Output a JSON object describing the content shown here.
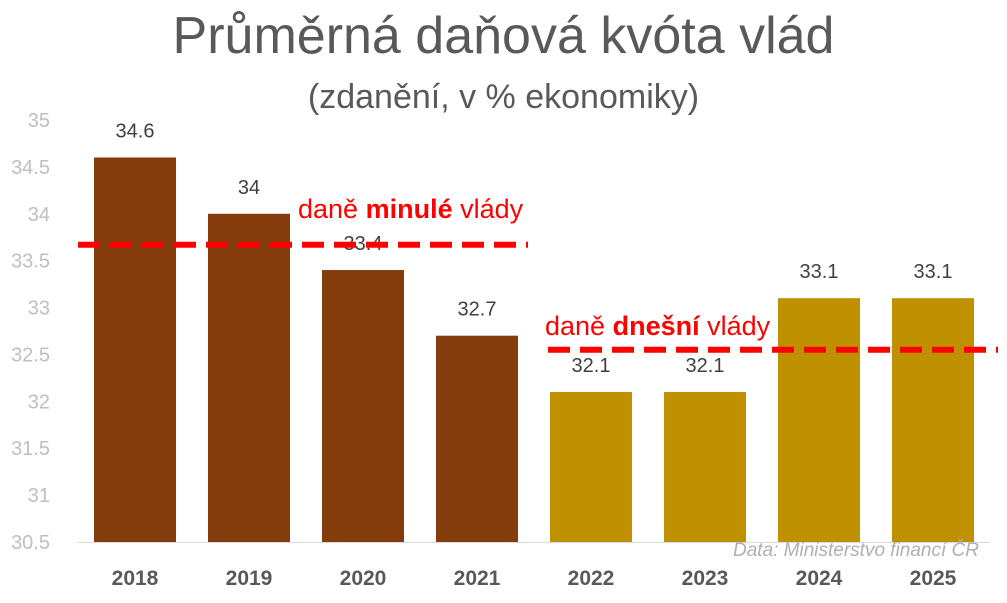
{
  "title": "Průměrná daňová kvóta vlád",
  "subtitle": "(zdanění, v % ekonomiky)",
  "source": "Data: Ministerstvo financí ČR",
  "annotations": {
    "previous": {
      "pre": "daně ",
      "bold": "minulé",
      "post": " vlády",
      "level": 33.67
    },
    "current": {
      "pre": "daně ",
      "bold": "dnešní",
      "post": " vlády",
      "level": 32.55
    }
  },
  "colors": {
    "previous_gov": "#843c0c",
    "current_gov": "#bf9000",
    "annotation": "#ff0000",
    "axis_text": "#bfbfbf"
  },
  "chart_data": {
    "type": "bar",
    "categories": [
      "2018",
      "2019",
      "2020",
      "2021",
      "2022",
      "2023",
      "2024",
      "2025"
    ],
    "values": [
      34.6,
      34,
      33.4,
      32.7,
      32.1,
      32.1,
      33.1,
      33.1
    ],
    "value_labels": [
      "34.6",
      "34",
      "33.4",
      "32.7",
      "32.1",
      "32.1",
      "33.1",
      "33.1"
    ],
    "bar_groups": [
      "previous",
      "previous",
      "previous",
      "previous",
      "current",
      "current",
      "current",
      "current"
    ],
    "ylim": [
      30.5,
      35
    ],
    "yticks": [
      "30.5",
      "31",
      "31.5",
      "32",
      "32.5",
      "33",
      "33.5",
      "34",
      "34.5",
      "35"
    ],
    "grid": false,
    "legend": "none"
  }
}
